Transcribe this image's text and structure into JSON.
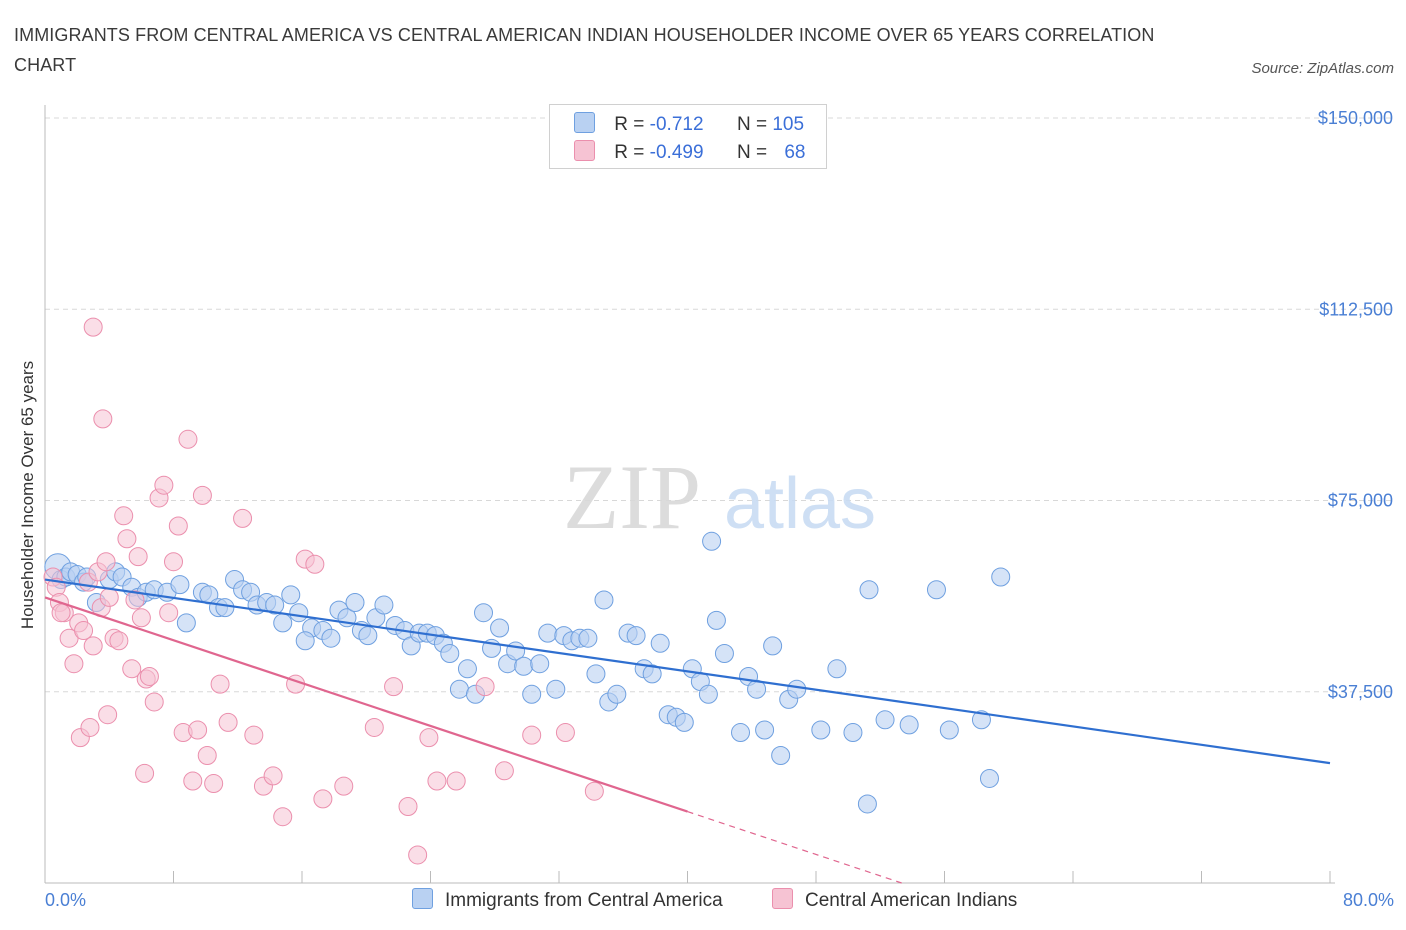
{
  "title": "IMMIGRANTS FROM CENTRAL AMERICA VS CENTRAL AMERICAN INDIAN HOUSEHOLDER INCOME OVER 65 YEARS CORRELATION CHART",
  "source": "Source: ZipAtlas.com",
  "watermark": {
    "zip": "ZIP",
    "atlas": "atlas"
  },
  "legend": {
    "rows": [
      {
        "r_label": "R = ",
        "r_value": "-0.712",
        "n_label": "N = ",
        "n_value": "105"
      },
      {
        "r_label": "R = ",
        "r_value": "-0.499",
        "n_label": "N = ",
        "n_value": "68"
      }
    ]
  },
  "colors": {
    "blue": "#6fa0e0",
    "blue_fill": "#b9d1f2",
    "blue_line": "#2f6fd0",
    "pink": "#eb8fad",
    "pink_fill": "#f6c3d3",
    "pink_line": "#e0668f",
    "tick_label": "#4a7fd4",
    "grid": "#d8d8d8"
  },
  "chart_data": {
    "type": "scatter",
    "title": "IMMIGRANTS FROM CENTRAL AMERICA VS CENTRAL AMERICAN INDIAN HOUSEHOLDER INCOME OVER 65 YEARS CORRELATION CHART",
    "xlabel": "",
    "ylabel": "Householder Income Over 65 years",
    "xlim": [
      0,
      80
    ],
    "ylim": [
      0,
      150000
    ],
    "x_tick_labels": [
      "0.0%",
      "80.0%"
    ],
    "y_ticks": [
      37500,
      75000,
      112500,
      150000
    ],
    "y_tick_labels": [
      "$37,500",
      "$75,000",
      "$112,500",
      "$150,000"
    ],
    "grid": true,
    "legend_position": "top-center",
    "series": [
      {
        "name": "Immigrants from Central America",
        "color": "#6fa0e0",
        "trend": {
          "x": [
            0.0,
            80.0
          ],
          "y": [
            59500,
            23500
          ]
        },
        "points": [
          [
            0.8,
            62000
          ],
          [
            1.0,
            59500
          ],
          [
            1.3,
            60000
          ],
          [
            1.6,
            61000
          ],
          [
            2.0,
            60500
          ],
          [
            2.4,
            59000
          ],
          [
            2.6,
            60000
          ],
          [
            3.2,
            55000
          ],
          [
            4.0,
            59500
          ],
          [
            4.4,
            61000
          ],
          [
            4.8,
            60000
          ],
          [
            5.4,
            58000
          ],
          [
            5.8,
            56000
          ],
          [
            6.3,
            57000
          ],
          [
            6.8,
            57500
          ],
          [
            7.6,
            57000
          ],
          [
            8.4,
            58500
          ],
          [
            8.8,
            51000
          ],
          [
            9.8,
            57000
          ],
          [
            10.2,
            56500
          ],
          [
            10.8,
            54000
          ],
          [
            11.2,
            54000
          ],
          [
            11.8,
            59500
          ],
          [
            12.3,
            57500
          ],
          [
            12.8,
            57000
          ],
          [
            13.2,
            54500
          ],
          [
            13.8,
            55000
          ],
          [
            14.3,
            54500
          ],
          [
            14.8,
            51000
          ],
          [
            15.3,
            56500
          ],
          [
            15.8,
            53000
          ],
          [
            16.6,
            50000
          ],
          [
            17.3,
            49500
          ],
          [
            17.8,
            48000
          ],
          [
            18.3,
            53500
          ],
          [
            18.8,
            52000
          ],
          [
            19.3,
            55000
          ],
          [
            19.7,
            49500
          ],
          [
            20.1,
            48500
          ],
          [
            20.6,
            52000
          ],
          [
            21.1,
            54500
          ],
          [
            21.8,
            50500
          ],
          [
            22.4,
            49500
          ],
          [
            22.8,
            46500
          ],
          [
            23.3,
            49000
          ],
          [
            23.8,
            49000
          ],
          [
            24.3,
            48500
          ],
          [
            24.8,
            47000
          ],
          [
            25.2,
            45000
          ],
          [
            25.8,
            38000
          ],
          [
            26.3,
            42000
          ],
          [
            26.8,
            37000
          ],
          [
            27.3,
            53000
          ],
          [
            27.8,
            46000
          ],
          [
            28.3,
            50000
          ],
          [
            28.8,
            43000
          ],
          [
            29.3,
            45500
          ],
          [
            29.8,
            42500
          ],
          [
            30.3,
            37000
          ],
          [
            30.8,
            43000
          ],
          [
            31.3,
            49000
          ],
          [
            31.8,
            38000
          ],
          [
            32.3,
            48500
          ],
          [
            32.8,
            47500
          ],
          [
            33.3,
            48000
          ],
          [
            33.8,
            48000
          ],
          [
            34.3,
            41000
          ],
          [
            34.8,
            55500
          ],
          [
            35.1,
            35500
          ],
          [
            35.6,
            37000
          ],
          [
            36.3,
            49000
          ],
          [
            36.8,
            48500
          ],
          [
            37.3,
            42000
          ],
          [
            37.8,
            41000
          ],
          [
            38.3,
            47000
          ],
          [
            38.8,
            33000
          ],
          [
            39.3,
            32500
          ],
          [
            39.8,
            31500
          ],
          [
            40.3,
            42000
          ],
          [
            40.8,
            39500
          ],
          [
            41.3,
            37000
          ],
          [
            41.8,
            51500
          ],
          [
            42.3,
            45000
          ],
          [
            43.3,
            29500
          ],
          [
            43.8,
            40500
          ],
          [
            44.3,
            38000
          ],
          [
            44.8,
            30000
          ],
          [
            45.3,
            46500
          ],
          [
            45.8,
            25000
          ],
          [
            46.3,
            36000
          ],
          [
            46.8,
            38000
          ],
          [
            48.3,
            30000
          ],
          [
            49.3,
            42000
          ],
          [
            50.3,
            29500
          ],
          [
            51.3,
            57500
          ],
          [
            52.3,
            32000
          ],
          [
            53.8,
            31000
          ],
          [
            55.5,
            57500
          ],
          [
            56.3,
            30000
          ],
          [
            58.3,
            32000
          ],
          [
            58.8,
            20500
          ],
          [
            59.5,
            60000
          ],
          [
            51.2,
            15500
          ],
          [
            41.5,
            67000
          ],
          [
            16.2,
            47500
          ]
        ]
      },
      {
        "name": "Central American Indians",
        "color": "#eb8fad",
        "trend": {
          "x": [
            0.0,
            40.0
          ],
          "y": [
            56000,
            14000
          ]
        },
        "points": [
          [
            0.5,
            60000
          ],
          [
            0.7,
            58000
          ],
          [
            0.9,
            55000
          ],
          [
            1.2,
            53000
          ],
          [
            1.5,
            48000
          ],
          [
            1.8,
            43000
          ],
          [
            2.1,
            51000
          ],
          [
            2.4,
            49500
          ],
          [
            2.7,
            59000
          ],
          [
            3.0,
            46500
          ],
          [
            3.3,
            61000
          ],
          [
            3.5,
            54000
          ],
          [
            3.8,
            63000
          ],
          [
            4.0,
            56000
          ],
          [
            4.3,
            48000
          ],
          [
            4.6,
            47500
          ],
          [
            4.9,
            72000
          ],
          [
            5.1,
            67500
          ],
          [
            5.4,
            42000
          ],
          [
            5.6,
            55500
          ],
          [
            5.8,
            64000
          ],
          [
            6.0,
            52000
          ],
          [
            6.3,
            40000
          ],
          [
            6.5,
            40500
          ],
          [
            6.8,
            35500
          ],
          [
            7.1,
            75500
          ],
          [
            7.4,
            78000
          ],
          [
            7.7,
            53000
          ],
          [
            8.0,
            63000
          ],
          [
            8.3,
            70000
          ],
          [
            8.6,
            29500
          ],
          [
            8.9,
            87000
          ],
          [
            9.2,
            20000
          ],
          [
            9.5,
            30000
          ],
          [
            9.8,
            76000
          ],
          [
            10.1,
            25000
          ],
          [
            10.5,
            19500
          ],
          [
            10.9,
            39000
          ],
          [
            11.4,
            31500
          ],
          [
            12.3,
            71500
          ],
          [
            13.0,
            29000
          ],
          [
            13.6,
            19000
          ],
          [
            14.2,
            21000
          ],
          [
            14.8,
            13000
          ],
          [
            15.6,
            39000
          ],
          [
            16.2,
            63500
          ],
          [
            16.8,
            62500
          ],
          [
            17.3,
            16500
          ],
          [
            18.6,
            19000
          ],
          [
            20.5,
            30500
          ],
          [
            21.7,
            38500
          ],
          [
            22.6,
            15000
          ],
          [
            23.2,
            5500
          ],
          [
            23.9,
            28500
          ],
          [
            24.4,
            20000
          ],
          [
            25.6,
            20000
          ],
          [
            27.4,
            38500
          ],
          [
            28.6,
            22000
          ],
          [
            30.3,
            29000
          ],
          [
            32.4,
            29500
          ],
          [
            34.2,
            18000
          ],
          [
            2.2,
            28500
          ],
          [
            3.0,
            109000
          ],
          [
            3.6,
            91000
          ],
          [
            3.9,
            33000
          ],
          [
            6.2,
            21500
          ],
          [
            2.8,
            30500
          ],
          [
            1.0,
            53000
          ]
        ]
      }
    ]
  }
}
